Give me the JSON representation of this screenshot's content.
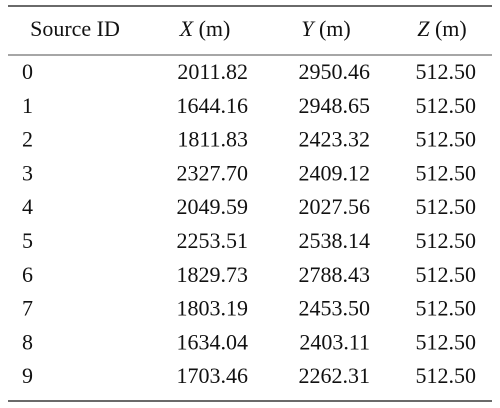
{
  "table": {
    "header": [
      "Source ID",
      {
        "symbol": "X",
        "unit": "(m)"
      },
      {
        "symbol": "Y",
        "unit": "(m)"
      },
      {
        "symbol": "Z",
        "unit": "(m)"
      }
    ],
    "rows": [
      [
        "0",
        "2011.82",
        "2950.46",
        "512.50"
      ],
      [
        "1",
        "1644.16",
        "2948.65",
        "512.50"
      ],
      [
        "2",
        "1811.83",
        "2423.32",
        "512.50"
      ],
      [
        "3",
        "2327.70",
        "2409.12",
        "512.50"
      ],
      [
        "4",
        "2049.59",
        "2027.56",
        "512.50"
      ],
      [
        "5",
        "2253.51",
        "2538.14",
        "512.50"
      ],
      [
        "6",
        "1829.73",
        "2788.43",
        "512.50"
      ],
      [
        "7",
        "1803.19",
        "2453.50",
        "512.50"
      ],
      [
        "8",
        "1634.04",
        "2403.11",
        "512.50"
      ],
      [
        "9",
        "1703.46",
        "2262.31",
        "512.50"
      ]
    ]
  }
}
